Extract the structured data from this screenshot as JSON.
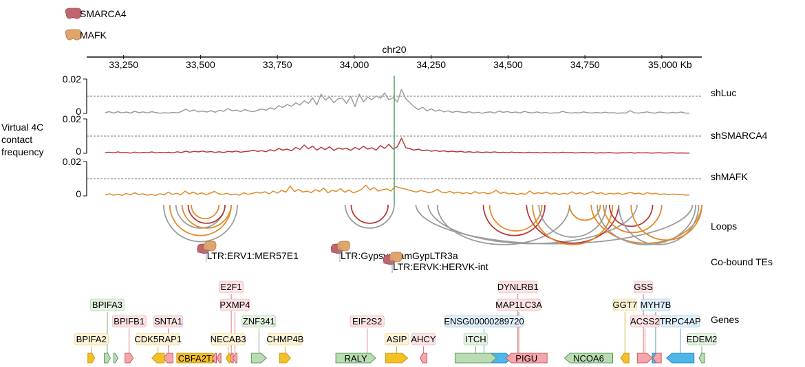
{
  "legend": [
    {
      "name": "SMARCA4",
      "color": "#c0646e"
    },
    {
      "name": "MAFK",
      "color": "#e0a56a"
    }
  ],
  "chrom_label": "chr20",
  "axis": {
    "unit": "Kb",
    "range": [
      33130,
      35130
    ],
    "ticks": [
      33250,
      33500,
      33750,
      34000,
      34250,
      34500,
      34750,
      35000
    ],
    "tick_labels": [
      "33,250",
      "33,500",
      "33,750",
      "34,000",
      "34,250",
      "34,500",
      "34,750",
      "35,000 Kb"
    ]
  },
  "ylabel_lines": [
    "Virtual 4C",
    "contact",
    "frequency"
  ],
  "highlight_pos": 34130,
  "chart_data": {
    "type": "line",
    "x_range": [
      33130,
      35130
    ],
    "ylim": [
      0,
      0.02
    ],
    "ytick_labels": [
      "0.02",
      "0"
    ],
    "dashed_y": 0.01,
    "series": [
      {
        "name": "shLuc",
        "color": "#9c9c9c",
        "values": [
          0.0005,
          0.001,
          0.0002,
          0.001,
          0.0003,
          0.0008,
          0.0002,
          0.0012,
          0.0004,
          0.0009,
          0.0003,
          0.001,
          0.0005,
          0.0001,
          0.0004,
          0.0002,
          0.0006,
          0.0003,
          0.0011,
          0.0025,
          0.0012,
          0.002,
          0.0009,
          0.0014,
          0.0008,
          0.0016,
          0.0007,
          0.0018,
          0.0012,
          0.0028,
          0.0015,
          0.0019,
          0.0011,
          0.0022,
          0.0014,
          0.001,
          0.0018,
          0.0026,
          0.0019,
          0.0032,
          0.0024,
          0.0045,
          0.0035,
          0.0052,
          0.0041,
          0.0062,
          0.0048,
          0.0074,
          0.0058,
          0.009,
          0.005,
          0.0112,
          0.0078,
          0.0095,
          0.0062,
          0.0085,
          0.009,
          0.0058,
          0.0098,
          0.004,
          0.0112,
          0.0068,
          0.0095,
          0.008,
          0.0102,
          0.0088,
          0.0119,
          0.0078,
          0.0092,
          0.0066,
          0.014,
          0.0085,
          0.0062,
          0.0038,
          0.0022,
          0.0036,
          0.0014,
          0.0027,
          0.0013,
          0.002,
          0.0009,
          0.0015,
          0.0006,
          0.0012,
          0.0008,
          0.0004,
          0.001,
          0.0002,
          0.0007,
          0.0001,
          0.0006,
          0.0009,
          0.0002,
          0.0014,
          0.0006,
          0.0011,
          0.0004,
          0.0008,
          0.0002,
          0.0012,
          0.0005,
          0.0003,
          0.0009,
          0.0002,
          0.0006,
          0.0001,
          0.0003,
          0.0003,
          0.0012,
          0.0005,
          0.0002,
          0.0004,
          0.0003,
          0.0009,
          0.0004,
          0.0002,
          0.0006,
          0.0002,
          0.0007,
          0.0003,
          0.0004,
          0.0001,
          0.0003,
          0.0002,
          0.0016,
          0.0003,
          0.0002,
          0.0005,
          0.0009,
          0.0003,
          0.0002,
          0.0008,
          0.0004,
          0.0002,
          0.0006,
          0.0003,
          0.0008,
          0.0002,
          0.0001
        ]
      },
      {
        "name": "shSMARCA4",
        "color": "#b83838",
        "values": [
          0.0003,
          0.0006,
          0.0002,
          0.0008,
          0.0003,
          0.0004,
          0.0001,
          0.0007,
          0.0002,
          0.0005,
          0.0003,
          0.0008,
          0.0002,
          0.0005,
          0.0003,
          0.0006,
          0.0002,
          0.0009,
          0.0004,
          0.0012,
          0.0006,
          0.0011,
          0.0008,
          0.0013,
          0.0007,
          0.001,
          0.0005,
          0.0009,
          0.0004,
          0.0011,
          0.0008,
          0.0013,
          0.0006,
          0.001,
          0.0012,
          0.0018,
          0.0011,
          0.0015,
          0.0009,
          0.0021,
          0.0013,
          0.0028,
          0.0018,
          0.0024,
          0.0015,
          0.0034,
          0.0022,
          0.0048,
          0.0026,
          0.0042,
          0.0018,
          0.0035,
          0.0021,
          0.0038,
          0.0016,
          0.0031,
          0.0024,
          0.0029,
          0.0017,
          0.0034,
          0.0022,
          0.0041,
          0.0024,
          0.0032,
          0.0018,
          0.0045,
          0.0028,
          0.0052,
          0.0025,
          0.0038,
          0.0088,
          0.0032,
          0.0026,
          0.0018,
          0.0024,
          0.0015,
          0.0019,
          0.0012,
          0.0016,
          0.0011,
          0.0014,
          0.0009,
          0.0012,
          0.0008,
          0.0011,
          0.0006,
          0.0009,
          0.0005,
          0.0008,
          0.0004,
          0.0007,
          0.0005,
          0.0008,
          0.0004,
          0.0006,
          0.0003,
          0.0007,
          0.0003,
          0.0005,
          0.0002,
          0.0006,
          0.0003,
          0.0004,
          0.0002,
          0.0005,
          0.0002,
          0.0004,
          0.0002,
          0.0006,
          0.0003,
          0.0004,
          0.0002,
          0.0003,
          0.0005,
          0.0002,
          0.0004,
          0.0001,
          0.0003,
          0.0002,
          0.0004,
          0.0002,
          0.0001,
          0.0003,
          0.0002,
          0.0004,
          0.0001,
          0.0003,
          0.0002,
          0.0003,
          0.0001,
          0.0002,
          0.0003,
          0.0001,
          0.0002,
          0.0003,
          0.0001,
          0.0002,
          0.0001,
          0.0001
        ]
      },
      {
        "name": "shMAFK",
        "color": "#e08a2a",
        "values": [
          0.0005,
          0.0012,
          0.0004,
          0.001,
          0.0003,
          0.0014,
          0.0006,
          0.0018,
          0.0008,
          0.0012,
          0.0004,
          0.0009,
          0.0003,
          0.0013,
          0.0006,
          0.0022,
          0.0008,
          0.0015,
          0.0006,
          0.0028,
          0.0012,
          0.0022,
          0.0009,
          0.0018,
          0.0007,
          0.0016,
          0.0026,
          0.0012,
          0.0009,
          0.0015,
          0.0006,
          0.0011,
          0.0004,
          0.0018,
          0.0009,
          0.0014,
          0.0022,
          0.0016,
          0.0024,
          0.0012,
          0.0028,
          0.0016,
          0.0032,
          0.0022,
          0.0058,
          0.0025,
          0.0038,
          0.0022,
          0.0028,
          0.0019,
          0.0036,
          0.0026,
          0.0045,
          0.0018,
          0.0032,
          0.0026,
          0.0042,
          0.0021,
          0.0035,
          0.0018,
          0.0026,
          0.0038,
          0.0062,
          0.0035,
          0.0048,
          0.0028,
          0.0036,
          0.0041,
          0.0028,
          0.0055,
          0.0048,
          0.0042,
          0.0036,
          0.0029,
          0.0022,
          0.0031,
          0.0026,
          0.0018,
          0.0024,
          0.0038,
          0.0022,
          0.0018,
          0.0026,
          0.0016,
          0.0022,
          0.0014,
          0.0019,
          0.0012,
          0.0025,
          0.0015,
          0.0021,
          0.0012,
          0.0018,
          0.0032,
          0.0014,
          0.0022,
          0.0011,
          0.0016,
          0.0008,
          0.0014,
          0.0009,
          0.0028,
          0.0012,
          0.0018,
          0.0014,
          0.0022,
          0.0011,
          0.0017,
          0.0008,
          0.0015,
          0.001,
          0.0024,
          0.0012,
          0.0018,
          0.0009,
          0.0016,
          0.0025,
          0.0012,
          0.0019,
          0.0008,
          0.0015,
          0.0011,
          0.0017,
          0.0009,
          0.0014,
          0.0021,
          0.0012,
          0.0016,
          0.0008,
          0.0019,
          0.0011,
          0.0015,
          0.0008,
          0.0012,
          0.0006,
          0.0011,
          0.0007,
          0.0009,
          0.0004,
          0.0006
        ]
      }
    ],
    "loops": [
      {
        "start": 33380,
        "end": 33620,
        "color": "#9c9c9c"
      },
      {
        "start": 33400,
        "end": 33600,
        "color": "#e08a2a"
      },
      {
        "start": 33420,
        "end": 33580,
        "color": "#9c9c9c"
      },
      {
        "start": 33440,
        "end": 33600,
        "color": "#e08a2a"
      },
      {
        "start": 33460,
        "end": 33580,
        "color": "#b83838"
      },
      {
        "start": 33470,
        "end": 33560,
        "color": "#e08a2a"
      },
      {
        "start": 33970,
        "end": 34130,
        "color": "#9c9c9c"
      },
      {
        "start": 33990,
        "end": 34110,
        "color": "#b83838"
      },
      {
        "start": 34200,
        "end": 35100,
        "color": "#9c9c9c"
      },
      {
        "start": 34240,
        "end": 34920,
        "color": "#9c9c9c"
      },
      {
        "start": 34270,
        "end": 34700,
        "color": "#9c9c9c"
      },
      {
        "start": 34420,
        "end": 34620,
        "color": "#b83838"
      },
      {
        "start": 34440,
        "end": 34610,
        "color": "#e08a2a"
      },
      {
        "start": 34560,
        "end": 34860,
        "color": "#b83838"
      },
      {
        "start": 34580,
        "end": 34840,
        "color": "#e08a2a"
      },
      {
        "start": 34600,
        "end": 34820,
        "color": "#9c9c9c"
      },
      {
        "start": 34700,
        "end": 34800,
        "color": "#e08a2a"
      },
      {
        "start": 34770,
        "end": 35130,
        "color": "#e08a2a"
      },
      {
        "start": 34790,
        "end": 35110,
        "color": "#9c9c9c"
      },
      {
        "start": 34810,
        "end": 35000,
        "color": "#e08a2a"
      },
      {
        "start": 34830,
        "end": 34970,
        "color": "#b83838"
      },
      {
        "start": 34860,
        "end": 35120,
        "color": "#9c9c9c"
      },
      {
        "start": 34900,
        "end": 35130,
        "color": "#e08a2a"
      }
    ]
  },
  "track_labels": [
    "shLuc",
    "shSMARCA4",
    "shMAFK",
    "Loops",
    "Co-bound TEs",
    "Genes"
  ],
  "tes": [
    {
      "label": "LTR:ERV1:MER57E1",
      "pos": 33525,
      "row": 0
    },
    {
      "label": "LTR:Gypsy:MamGypLTR3a",
      "pos": 33960,
      "row": 0
    },
    {
      "label": "LTR:ERVK:HERVK-int",
      "pos": 34130,
      "row": 1
    }
  ],
  "genes": [
    {
      "label": "BPIFA3",
      "pos": 33197,
      "row": 1,
      "color": "green",
      "strand": "+",
      "glyph_w": 9
    },
    {
      "label": "BPIFB1",
      "pos": 33268,
      "row": 2,
      "color": "red",
      "strand": "+",
      "glyph_w": 12
    },
    {
      "label": "SNTA1",
      "pos": 33395,
      "row": 2,
      "color": "red",
      "strand": "-",
      "glyph_w": 14
    },
    {
      "label": "BPIFA2",
      "pos": 33145,
      "row": 3,
      "color": "yellow",
      "strand": "+",
      "glyph_w": 10
    },
    {
      "label": "CDK5RAP1",
      "pos": 33362,
      "row": 3,
      "color": "yellow",
      "strand": "-",
      "glyph_w": 18
    },
    {
      "label": "E2F1",
      "pos": 33600,
      "row": 0,
      "color": "red",
      "strand": "-",
      "glyph_w": 6
    },
    {
      "label": "PXMP4",
      "pos": 33612,
      "row": 1,
      "color": "red",
      "strand": "-",
      "glyph_w": 6
    },
    {
      "label": "ZNF341",
      "pos": 33690,
      "row": 2,
      "color": "green",
      "strand": "+",
      "glyph_w": 22
    },
    {
      "label": "NECAB3",
      "pos": 33590,
      "row": 3,
      "color": "yellow",
      "strand": "-",
      "glyph_w": 6
    },
    {
      "label": "CHMP4B",
      "pos": 33775,
      "row": 3,
      "color": "yellow",
      "strand": "+",
      "glyph_w": 16
    },
    {
      "label": "CBFA2T2",
      "pos": 33490,
      "row": 4,
      "color": "yellow",
      "strand": "+",
      "glyph_w": 60,
      "boxed": true
    },
    {
      "label": "EIF2S2",
      "pos": 34042,
      "row": 2,
      "color": "red",
      "strand": "-",
      "glyph_w": 10
    },
    {
      "label": "ASIP",
      "pos": 34138,
      "row": 3,
      "color": "yellow",
      "strand": "+",
      "glyph_w": 32
    },
    {
      "label": "AHCY",
      "pos": 34225,
      "row": 3,
      "color": "red",
      "strand": "-",
      "glyph_w": 10
    },
    {
      "label": "RALY",
      "pos": 34005,
      "row": 4,
      "color": "green",
      "strand": "+",
      "glyph_w": 58,
      "boxed": true
    },
    {
      "label": "DYNLRB1",
      "pos": 34532,
      "row": 0,
      "color": "red",
      "strand": "+",
      "glyph_w": 6
    },
    {
      "label": "MAP1LC3A",
      "pos": 34535,
      "row": 1,
      "color": "red",
      "strand": "+",
      "glyph_w": 6
    },
    {
      "label": "ENSG00000289720",
      "pos": 34422,
      "row": 2,
      "color": "blue",
      "strand": "+",
      "glyph_w": 80
    },
    {
      "label": "ITCH",
      "pos": 34395,
      "row": 3,
      "color": "green",
      "strand": "+",
      "glyph_w": 60
    },
    {
      "label": "PIGU",
      "pos": 34560,
      "row": 4,
      "color": "red",
      "strand": "-",
      "glyph_w": 60,
      "boxed": true
    },
    {
      "label": "NCOA6",
      "pos": 34762,
      "row": 3,
      "color": "green",
      "strand": "-",
      "glyph_w": 70,
      "boxed": true
    },
    {
      "label": "GSS",
      "pos": 34940,
      "row": 0,
      "color": "red",
      "strand": "-",
      "glyph_w": 8
    },
    {
      "label": "MYH7B",
      "pos": 34980,
      "row": 1,
      "color": "blue",
      "strand": "+",
      "glyph_w": 10
    },
    {
      "label": "GGT7",
      "pos": 34880,
      "row": 1,
      "color": "yellow",
      "strand": "-",
      "glyph_w": 12
    },
    {
      "label": "ACSS2",
      "pos": 34945,
      "row": 2,
      "color": "red",
      "strand": "+",
      "glyph_w": 22
    },
    {
      "label": "TRPC4AP",
      "pos": 35060,
      "row": 2,
      "color": "blue",
      "strand": "-",
      "glyph_w": 40
    },
    {
      "label": "EDEM2",
      "pos": 35130,
      "row": 3,
      "color": "green",
      "strand": "-",
      "glyph_w": 8
    }
  ],
  "extra_genes": [
    {
      "pos": 33225,
      "color": "green",
      "strand": "+",
      "glyph_w": 6
    },
    {
      "pos": 33545,
      "color": "red",
      "strand": "-",
      "glyph_w": 6
    },
    {
      "pos": 33560,
      "color": "red",
      "strand": "-",
      "glyph_w": 6
    },
    {
      "pos": 34985,
      "color": "red",
      "strand": "-",
      "glyph_w": 12
    }
  ],
  "gene_colors": {
    "green": {
      "fill": "#b9dcb3",
      "stroke": "#5a9a55",
      "label_bg": "#e4f2e0"
    },
    "red": {
      "fill": "#f4a6ab",
      "stroke": "#cf5a62",
      "label_bg": "#fbe3e4"
    },
    "yellow": {
      "fill": "#f5c025",
      "stroke": "#c99b10",
      "label_bg": "#fcf2d6"
    },
    "blue": {
      "fill": "#4fb6ea",
      "stroke": "#2a88bd",
      "label_bg": "#e0eff9"
    }
  }
}
